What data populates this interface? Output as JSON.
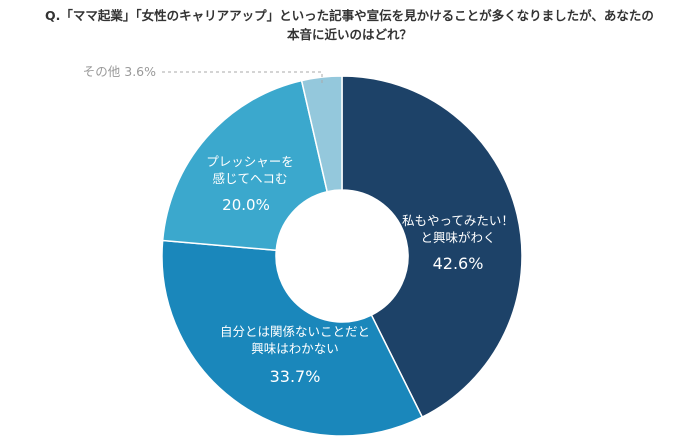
{
  "chart_data": {
    "type": "pie",
    "title_line1": "Q.「ママ起業」「女性のキャリアアップ」といった記事や宣伝を見かけることが多くなりましたが、あなたの",
    "title_line2": "本音に近いのはどれ？",
    "slices": [
      {
        "label_lines": [
          "私もやってみたい！",
          "と興味がわく"
        ],
        "value": 42.6,
        "value_label": "42.6%",
        "color": "#1d4268"
      },
      {
        "label_lines": [
          "自分とは関係ないことだと",
          "興味はわかない"
        ],
        "value": 33.7,
        "value_label": "33.7%",
        "color": "#1a87bb"
      },
      {
        "label_lines": [
          "プレッシャーを",
          "感じてヘコむ"
        ],
        "value": 20.0,
        "value_label": "20.0%",
        "color": "#3ba8cd"
      },
      {
        "label_lines": [
          "その他 3.6%"
        ],
        "value": 3.6,
        "value_label": "",
        "color": "#94c8dc"
      }
    ]
  }
}
